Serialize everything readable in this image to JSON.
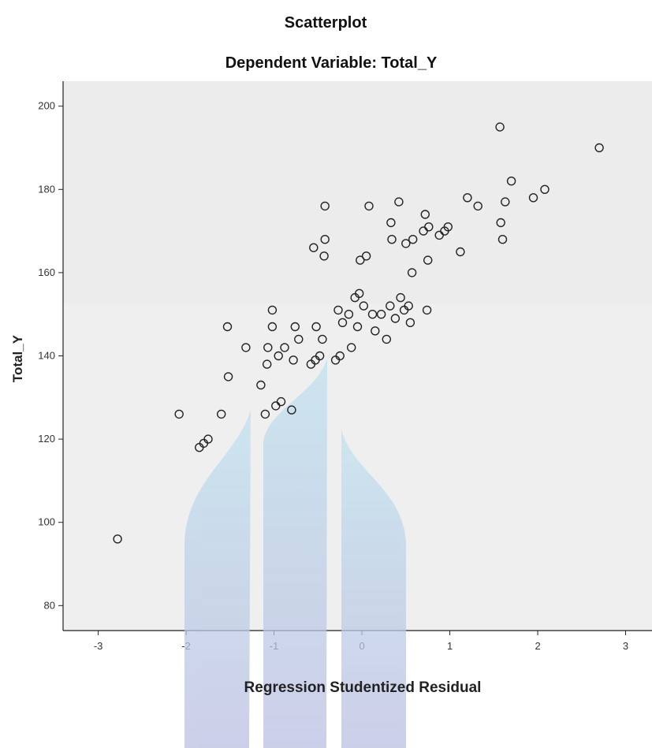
{
  "chart_data": {
    "type": "scatter",
    "title": "Scatterplot",
    "subtitle": "Dependent Variable: Total_Y",
    "xlabel": "Regression Studentized Residual",
    "ylabel": "Total_Y",
    "xlim": [
      -3.4,
      3.3
    ],
    "ylim": [
      74,
      206
    ],
    "xticks": [
      -3,
      -2,
      -1,
      0,
      1,
      2,
      3
    ],
    "yticks": [
      80,
      100,
      120,
      140,
      160,
      180,
      200
    ],
    "xtick_labels": [
      "-3",
      "-2",
      "-1",
      "0",
      "1",
      "2",
      "3"
    ],
    "ytick_labels": [
      "80",
      "100",
      "120",
      "140",
      "160",
      "180",
      "200"
    ],
    "grid": false,
    "legend": "none",
    "colors": {
      "plot_background": "#efefef",
      "marker_stroke": "#222222",
      "watermark": "#b8d8ea"
    },
    "points": [
      [
        -2.78,
        96
      ],
      [
        -2.08,
        126
      ],
      [
        -1.85,
        118
      ],
      [
        -1.8,
        119
      ],
      [
        -1.75,
        120
      ],
      [
        -1.6,
        126
      ],
      [
        -1.53,
        147
      ],
      [
        -1.52,
        135
      ],
      [
        -1.32,
        142
      ],
      [
        -1.15,
        133
      ],
      [
        -1.1,
        126
      ],
      [
        -1.08,
        138
      ],
      [
        -1.07,
        142
      ],
      [
        -1.02,
        151
      ],
      [
        -1.02,
        147
      ],
      [
        -0.98,
        128
      ],
      [
        -0.95,
        140
      ],
      [
        -0.92,
        129
      ],
      [
        -0.88,
        142
      ],
      [
        -0.8,
        127
      ],
      [
        -0.78,
        139
      ],
      [
        -0.76,
        147
      ],
      [
        -0.72,
        144
      ],
      [
        -0.58,
        138
      ],
      [
        -0.55,
        166
      ],
      [
        -0.53,
        139
      ],
      [
        -0.52,
        147
      ],
      [
        -0.48,
        140
      ],
      [
        -0.45,
        144
      ],
      [
        -0.43,
        164
      ],
      [
        -0.42,
        168
      ],
      [
        -0.42,
        176
      ],
      [
        -0.3,
        139
      ],
      [
        -0.27,
        151
      ],
      [
        -0.25,
        140
      ],
      [
        -0.22,
        148
      ],
      [
        -0.15,
        150
      ],
      [
        -0.12,
        142
      ],
      [
        -0.08,
        154
      ],
      [
        -0.05,
        147
      ],
      [
        -0.03,
        155
      ],
      [
        -0.02,
        163
      ],
      [
        0.02,
        152
      ],
      [
        0.05,
        164
      ],
      [
        0.08,
        176
      ],
      [
        0.12,
        150
      ],
      [
        0.15,
        146
      ],
      [
        0.22,
        150
      ],
      [
        0.28,
        144
      ],
      [
        0.32,
        152
      ],
      [
        0.33,
        172
      ],
      [
        0.34,
        168
      ],
      [
        0.38,
        149
      ],
      [
        0.42,
        177
      ],
      [
        0.44,
        154
      ],
      [
        0.48,
        151
      ],
      [
        0.5,
        167
      ],
      [
        0.53,
        152
      ],
      [
        0.55,
        148
      ],
      [
        0.57,
        160
      ],
      [
        0.58,
        168
      ],
      [
        0.7,
        170
      ],
      [
        0.72,
        174
      ],
      [
        0.74,
        151
      ],
      [
        0.75,
        163
      ],
      [
        0.76,
        171
      ],
      [
        0.88,
        169
      ],
      [
        0.94,
        170
      ],
      [
        0.98,
        171
      ],
      [
        1.12,
        165
      ],
      [
        1.2,
        178
      ],
      [
        1.32,
        176
      ],
      [
        1.57,
        195
      ],
      [
        1.58,
        172
      ],
      [
        1.6,
        168
      ],
      [
        1.63,
        177
      ],
      [
        1.7,
        182
      ],
      [
        1.95,
        178
      ],
      [
        2.08,
        180
      ],
      [
        2.7,
        190
      ]
    ]
  }
}
